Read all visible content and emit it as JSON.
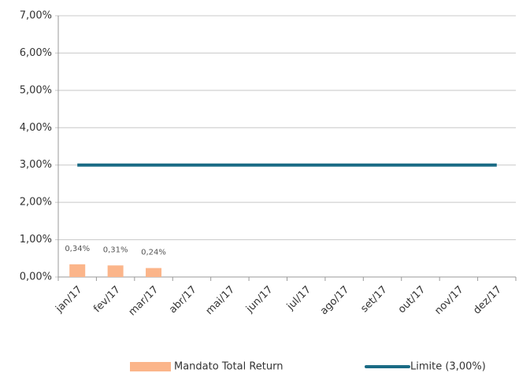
{
  "chart_data": {
    "type": "bar",
    "categories": [
      "jan/17",
      "fev/17",
      "mar/17",
      "abr/17",
      "mai/17",
      "jun/17",
      "jul/17",
      "ago/17",
      "set/17",
      "out/17",
      "nov/17",
      "dez/17"
    ],
    "series": [
      {
        "name": "Mandato Total Return",
        "type": "bar",
        "color": "#fbb58a",
        "values": [
          0.34,
          0.31,
          0.24,
          null,
          null,
          null,
          null,
          null,
          null,
          null,
          null,
          null
        ],
        "value_labels": [
          "0,34%",
          "0,31%",
          "0,24%",
          null,
          null,
          null,
          null,
          null,
          null,
          null,
          null,
          null
        ]
      },
      {
        "name": "Limite (3,00%)",
        "type": "line",
        "color": "#1a6b85",
        "values": [
          3,
          3,
          3,
          3,
          3,
          3,
          3,
          3,
          3,
          3,
          3,
          3
        ]
      }
    ],
    "ylim": [
      0,
      7
    ],
    "yticks": [
      {
        "value": 0,
        "label": "0,00%"
      },
      {
        "value": 1,
        "label": "1,00%"
      },
      {
        "value": 2,
        "label": "2,00%"
      },
      {
        "value": 3,
        "label": "3,00%"
      },
      {
        "value": 4,
        "label": "4,00%"
      },
      {
        "value": 5,
        "label": "5,00%"
      },
      {
        "value": 6,
        "label": "6,00%"
      },
      {
        "value": 7,
        "label": "7,00%"
      }
    ],
    "grid": true,
    "legend": "bottom"
  }
}
